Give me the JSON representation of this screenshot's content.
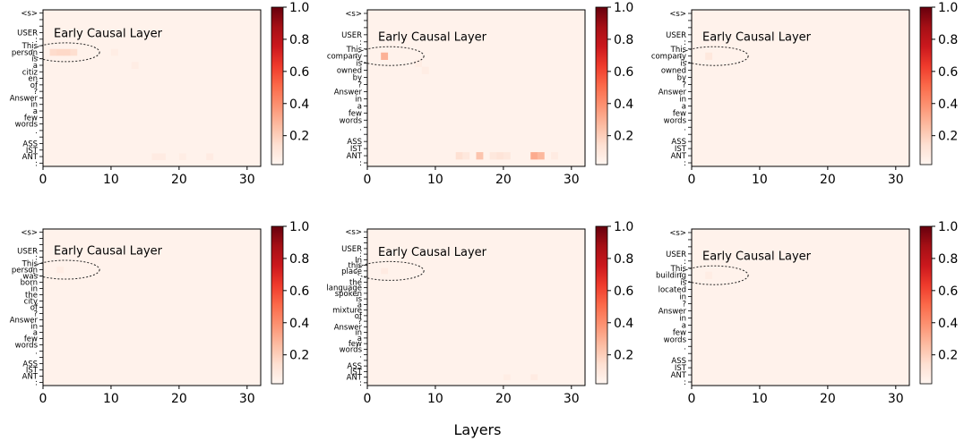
{
  "figure": {
    "shared_xlabel": "Layers",
    "colormap": "Reds",
    "colorbar_ticks": [
      "0.2",
      "0.4",
      "0.6",
      "0.8",
      "1.0"
    ],
    "annotation_text": "Early Causal Layer"
  },
  "chart_data": [
    {
      "type": "heatmap",
      "x_range": [
        0,
        32
      ],
      "x_ticks": [
        "0",
        "10",
        "20",
        "30"
      ],
      "y_tokens": [
        "<s>",
        "",
        "",
        "USER",
        ":",
        "This",
        "person",
        "is",
        "a",
        "citiz",
        "en",
        "of",
        "?",
        "Answer",
        "in",
        "a",
        "few",
        "words",
        ".",
        "",
        "ASS",
        "IST",
        "ANT",
        ":"
      ],
      "annotation": "Early Causal Layer",
      "highlight_token": "person",
      "highlight_layers": [
        0,
        5
      ],
      "cells": [
        {
          "x": 1,
          "y": 6,
          "v": 0.14
        },
        {
          "x": 2,
          "y": 6,
          "v": 0.15
        },
        {
          "x": 3,
          "y": 6,
          "v": 0.15
        },
        {
          "x": 4,
          "y": 6,
          "v": 0.13
        },
        {
          "x": 10,
          "y": 6,
          "v": 0.05
        },
        {
          "x": 13,
          "y": 8,
          "v": 0.05
        },
        {
          "x": 16,
          "y": 22,
          "v": 0.06
        },
        {
          "x": 17,
          "y": 22,
          "v": 0.06
        },
        {
          "x": 20,
          "y": 22,
          "v": 0.05
        },
        {
          "x": 24,
          "y": 22,
          "v": 0.06
        }
      ]
    },
    {
      "type": "heatmap",
      "x_range": [
        0,
        32
      ],
      "x_ticks": [
        "0",
        "10",
        "20",
        "30"
      ],
      "y_tokens": [
        "<s>",
        "",
        "",
        "USER",
        ":",
        "This",
        "company",
        "is",
        "owned",
        "by",
        "?",
        "Answer",
        "in",
        "a",
        "few",
        "words",
        ".",
        "",
        "ASS",
        "IST",
        "ANT",
        ":"
      ],
      "annotation": "Early Causal Layer",
      "highlight_token": "company",
      "highlight_layers": [
        0,
        5
      ],
      "cells": [
        {
          "x": 2,
          "y": 6,
          "v": 0.28
        },
        {
          "x": 7,
          "y": 7,
          "v": 0.05
        },
        {
          "x": 8,
          "y": 8,
          "v": 0.05
        },
        {
          "x": 13,
          "y": 20,
          "v": 0.12
        },
        {
          "x": 14,
          "y": 20,
          "v": 0.08
        },
        {
          "x": 16,
          "y": 20,
          "v": 0.22
        },
        {
          "x": 18,
          "y": 20,
          "v": 0.08
        },
        {
          "x": 19,
          "y": 20,
          "v": 0.1
        },
        {
          "x": 20,
          "y": 20,
          "v": 0.08
        },
        {
          "x": 24,
          "y": 20,
          "v": 0.3
        },
        {
          "x": 25,
          "y": 20,
          "v": 0.26
        },
        {
          "x": 27,
          "y": 20,
          "v": 0.06
        }
      ]
    },
    {
      "type": "heatmap",
      "x_range": [
        0,
        32
      ],
      "x_ticks": [
        "0",
        "10",
        "20",
        "30"
      ],
      "y_tokens": [
        "<s>",
        "",
        "",
        "USER",
        ":",
        "This",
        "company",
        "is",
        "owned",
        "by",
        "?",
        "Answer",
        "in",
        "a",
        "few",
        "words",
        ".",
        "",
        "ASS",
        "IST",
        "ANT",
        ":"
      ],
      "annotation": "Early Causal Layer",
      "highlight_token": "company",
      "highlight_layers": [
        0,
        5
      ],
      "cells": [
        {
          "x": 2,
          "y": 6,
          "v": 0.08
        }
      ]
    },
    {
      "type": "heatmap",
      "x_range": [
        0,
        32
      ],
      "x_ticks": [
        "0",
        "10",
        "20",
        "30"
      ],
      "y_tokens": [
        "<s>",
        "",
        "",
        "USER",
        ":",
        "This",
        "person",
        "was",
        "born",
        "in",
        "the",
        "city",
        "of",
        "?",
        "Answer",
        "in",
        "a",
        "few",
        "words",
        ".",
        "",
        "ASS",
        "IST",
        "ANT",
        ":"
      ],
      "annotation": "Early Causal Layer",
      "highlight_token": "person",
      "highlight_layers": [
        0,
        5
      ],
      "cells": [
        {
          "x": 2,
          "y": 6,
          "v": 0.05
        }
      ]
    },
    {
      "type": "heatmap",
      "x_range": [
        0,
        32
      ],
      "x_ticks": [
        "0",
        "10",
        "20",
        "30"
      ],
      "y_tokens": [
        "<s>",
        "",
        "",
        "USER",
        ":",
        "In",
        "this",
        "place",
        ",",
        "the",
        "language",
        "spoken",
        "is",
        "a",
        "mixture",
        "of",
        "?",
        "Answer",
        "in",
        "a",
        "few",
        "words",
        ".",
        "",
        "ASS",
        "IST",
        "ANT",
        ":"
      ],
      "annotation": "Early Causal Layer",
      "highlight_token": "place",
      "highlight_layers": [
        0,
        5
      ],
      "cells": [
        {
          "x": 2,
          "y": 7,
          "v": 0.06
        },
        {
          "x": 20,
          "y": 26,
          "v": 0.05
        },
        {
          "x": 24,
          "y": 26,
          "v": 0.06
        }
      ]
    },
    {
      "type": "heatmap",
      "x_range": [
        0,
        32
      ],
      "x_ticks": [
        "0",
        "10",
        "20",
        "30"
      ],
      "y_tokens": [
        "<s>",
        "",
        "",
        "USER",
        ":",
        "This",
        "building",
        "is",
        "located",
        "in",
        "?",
        "Answer",
        "in",
        "a",
        "few",
        "words",
        ".",
        "",
        "ASS",
        "IST",
        "ANT",
        ":"
      ],
      "annotation": "Early Causal Layer",
      "highlight_token": "building",
      "highlight_layers": [
        0,
        5
      ],
      "cells": [
        {
          "x": 2,
          "y": 6,
          "v": 0.05
        }
      ]
    }
  ]
}
